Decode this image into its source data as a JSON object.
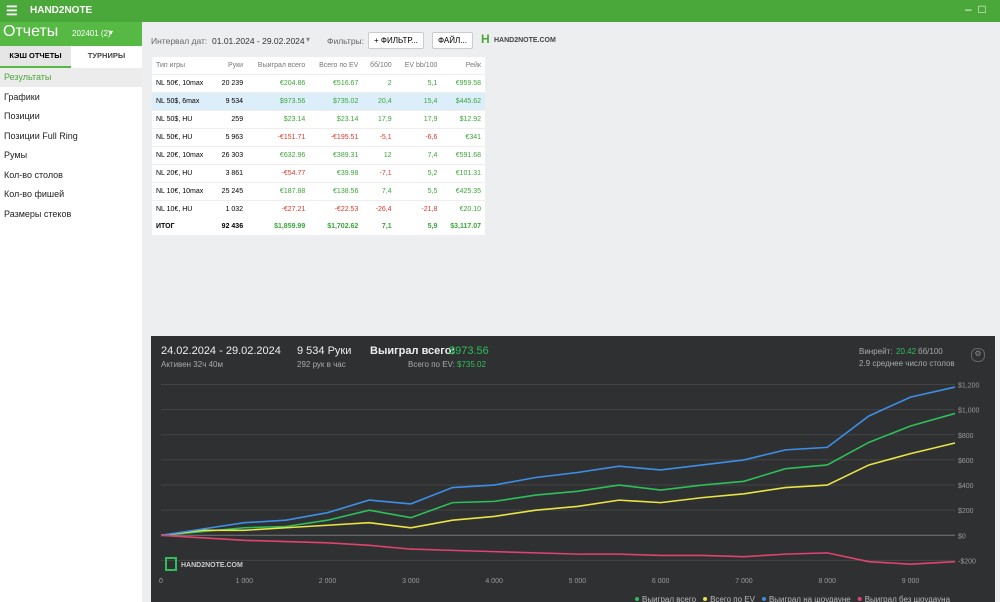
{
  "app": {
    "title": "HAND2NOTE"
  },
  "sidebar": {
    "title": "Отчеты",
    "filter": "202401 (2)",
    "tabs": [
      "КЭШ ОТЧЕТЫ",
      "ТУРНИРЫ"
    ],
    "items": [
      "Результаты",
      "Графики",
      "Позиции",
      "Позиции Full Ring",
      "Румы",
      "Кол-во столов",
      "Кол-во фишей",
      "Размеры стеков"
    ]
  },
  "toolbar": {
    "interval_label": "Интервал дат:",
    "interval": "01.01.2024 - 29.02.2024",
    "filters_label": "Фильтры:",
    "filter_button": "ФИЛЬТР...",
    "file_button": "ФАЙЛ...",
    "logo": "HAND2NOTE.COM"
  },
  "table": {
    "headers": [
      "Тип игры",
      "Руки",
      "Выиграл всего",
      "Всего по EV",
      "бб/100",
      "EV bb/100",
      "Рейк"
    ],
    "rows": [
      [
        "NL 50€, 10max",
        "20 239",
        "€204.86",
        "€516.67",
        "2",
        "5,1",
        "€959.58"
      ],
      [
        "NL 50$, 6max",
        "9 534",
        "$973.56",
        "$735.02",
        "20,4",
        "15,4",
        "$445.62"
      ],
      [
        "NL 50$, HU",
        "259",
        "$23.14",
        "$23.14",
        "17,9",
        "17,9",
        "$12.92"
      ],
      [
        "NL 50€, HU",
        "5 963",
        "-€151.71",
        "-€195.51",
        "-5,1",
        "-6,6",
        "€341"
      ],
      [
        "NL 20€, 10max",
        "26 303",
        "€632.96",
        "€389.31",
        "12",
        "7,4",
        "€591.68"
      ],
      [
        "NL 20€, HU",
        "3 861",
        "-€54.77",
        "€39.98",
        "-7,1",
        "5,2",
        "€101.31"
      ],
      [
        "NL 10€, 10max",
        "25 245",
        "€187.88",
        "€138.56",
        "7,4",
        "5,5",
        "€425.35"
      ],
      [
        "NL 10€, HU",
        "1 032",
        "-€27.21",
        "-€22.53",
        "-26,4",
        "-21,8",
        "€20.10"
      ]
    ],
    "total": [
      "ИТОГ",
      "92 436",
      "$1,859.99",
      "$1,702.62",
      "7,1",
      "5,9",
      "$3,117.07"
    ]
  },
  "panel": {
    "period": "24.02.2024 - 29.02.2024",
    "active": "Активен 32ч 40м",
    "hands": "9 534 Руки",
    "per_hour": "292 рук в час",
    "won_label": "Выиграл всего:",
    "won": "$973.56",
    "ev_label": "Всего по EV:",
    "ev": "$735.02",
    "winrate_label": "Винрейт:",
    "winrate": "20.42",
    "winrate_unit": "бб/100",
    "tables": "2.9 среднее число столов",
    "watermark": "HAND2NOTE.COM"
  },
  "chart_data": {
    "type": "line",
    "x": [
      0,
      500,
      1000,
      1500,
      2000,
      2500,
      3000,
      3500,
      4000,
      4500,
      5000,
      5500,
      6000,
      6500,
      7000,
      7500,
      8000,
      8500,
      9000,
      9534
    ],
    "series": [
      {
        "name": "Выиграл всего",
        "color": "#2fbf5a",
        "values": [
          0,
          30,
          60,
          70,
          120,
          200,
          140,
          260,
          270,
          320,
          350,
          400,
          360,
          400,
          430,
          530,
          560,
          740,
          870,
          970
        ]
      },
      {
        "name": "Всего по EV",
        "color": "#e8e445",
        "values": [
          0,
          40,
          40,
          60,
          80,
          100,
          60,
          120,
          150,
          200,
          230,
          280,
          260,
          300,
          330,
          380,
          400,
          560,
          650,
          735
        ]
      },
      {
        "name": "Выиграл на шоудауне",
        "color": "#3d8fe6",
        "values": [
          0,
          50,
          100,
          120,
          180,
          280,
          250,
          380,
          400,
          460,
          500,
          550,
          520,
          560,
          600,
          680,
          700,
          950,
          1100,
          1180
        ]
      },
      {
        "name": "Выиграл без шоудауна",
        "color": "#e0436e",
        "values": [
          0,
          -20,
          -40,
          -50,
          -60,
          -80,
          -110,
          -120,
          -130,
          -140,
          -150,
          -150,
          -160,
          -160,
          -170,
          -150,
          -140,
          -210,
          -230,
          -210
        ]
      }
    ],
    "xlim": [
      0,
      9534
    ],
    "ylim": [
      -340,
      1300
    ],
    "xticks": [
      0,
      {
        "value": 1000,
        "label": "1 000"
      },
      {
        "value": 2000,
        "label": "2 000"
      },
      {
        "value": 3000,
        "label": "3 000"
      },
      {
        "value": 4000,
        "label": "4 000"
      },
      {
        "value": 5000,
        "label": "5 000"
      },
      {
        "value": 6000,
        "label": "6 000"
      },
      {
        "value": 7000,
        "label": "7 000"
      },
      {
        "value": 8000,
        "label": "8 000"
      },
      {
        "value": 9000,
        "label": "9 000"
      }
    ],
    "yticks": [
      {
        "value": -200,
        "label": "-$200"
      },
      {
        "value": 0,
        "label": "$0"
      },
      {
        "value": 200,
        "label": "$200"
      },
      {
        "value": 400,
        "label": "$400"
      },
      {
        "value": 600,
        "label": "$600"
      },
      {
        "value": 800,
        "label": "$800"
      },
      {
        "value": 1000,
        "label": "$1,000"
      },
      {
        "value": 1200,
        "label": "$1,200"
      }
    ],
    "grid": true
  }
}
